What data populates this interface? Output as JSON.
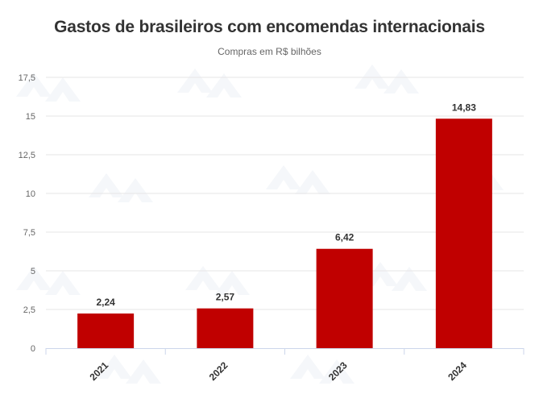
{
  "chart_data": {
    "type": "bar",
    "title": "Gastos de brasileiros com encomendas internacionais",
    "subtitle": "Compras em R$ bilhões",
    "categories": [
      "2021",
      "2022",
      "2023",
      "2024"
    ],
    "values": [
      2.24,
      2.57,
      6.42,
      14.83
    ],
    "data_labels": [
      "2,24",
      "2,57",
      "6,42",
      "14,83"
    ],
    "yticks": [
      "0",
      "2,5",
      "5",
      "7,5",
      "10",
      "12,5",
      "15",
      "17,5"
    ],
    "ytick_values": [
      0,
      2.5,
      5,
      7.5,
      10,
      12.5,
      15,
      17.5
    ],
    "ylim": [
      0,
      17.5
    ],
    "grid": true,
    "bar_color": "#c00000"
  }
}
